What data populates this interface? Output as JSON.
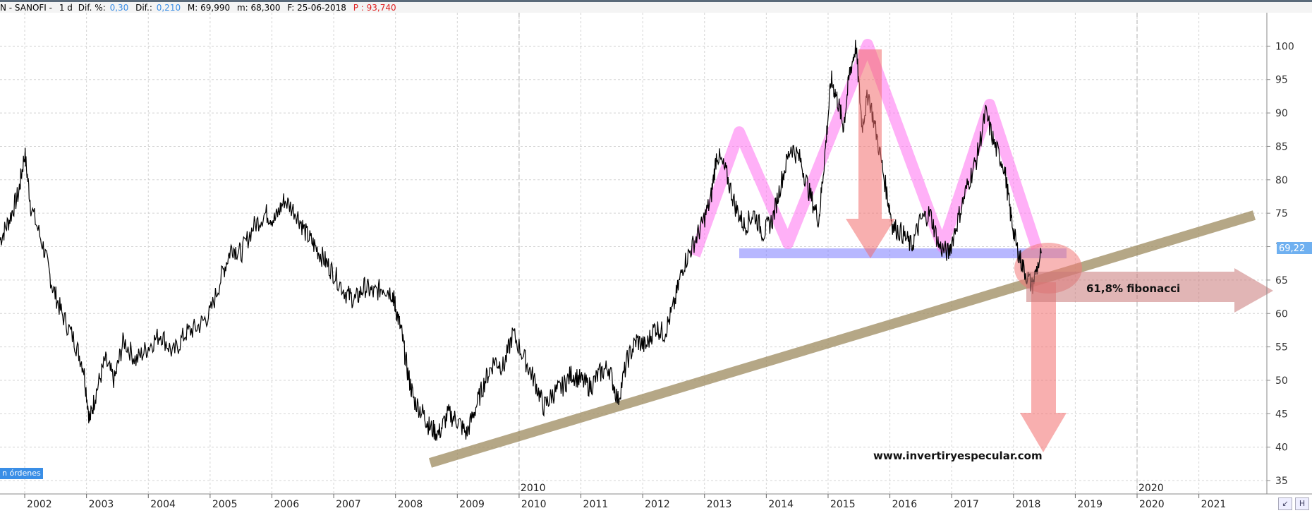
{
  "header": {
    "symbol": "N - SANOFI -",
    "timeframe": "1 d",
    "dif_pct_label": "Dif. %:",
    "dif_pct_value": "0,30",
    "dif_label": "Dif.:",
    "dif_value": "0,210",
    "max_label": "M: 69,990",
    "min_label": "m: 68,300",
    "date_label": "F: 25-06-2018",
    "p_label": "P : 93,740"
  },
  "orders_button": "n órdenes",
  "price_tag": "69,22",
  "chart_data": {
    "type": "line",
    "x_unit": "year",
    "x_ticks": [
      "2002",
      "2003",
      "2004",
      "2005",
      "2006",
      "2007",
      "2008",
      "2009",
      "2010",
      "2011",
      "2012",
      "2013",
      "2014",
      "2015",
      "2016",
      "2017",
      "2018",
      "2019",
      "2020",
      "2021"
    ],
    "x_upper_labels": [
      "2010",
      "2020"
    ],
    "y_ticks": [
      35,
      40,
      45,
      50,
      55,
      60,
      65,
      70,
      75,
      80,
      85,
      90,
      95,
      100
    ],
    "ylim": [
      33,
      105
    ],
    "xlim": [
      2001.6,
      2022.1
    ],
    "grid": true,
    "price_series": {
      "x": [
        2001.6,
        2001.75,
        2001.9,
        2002.0,
        2002.1,
        2002.3,
        2002.45,
        2002.6,
        2002.8,
        2002.95,
        2003.05,
        2003.15,
        2003.3,
        2003.45,
        2003.6,
        2003.8,
        2004.0,
        2004.2,
        2004.4,
        2004.6,
        2004.8,
        2005.0,
        2005.2,
        2005.35,
        2005.5,
        2005.7,
        2005.9,
        2006.05,
        2006.2,
        2006.4,
        2006.55,
        2006.7,
        2006.85,
        2007.0,
        2007.2,
        2007.35,
        2007.5,
        2007.65,
        2007.8,
        2007.95,
        2008.0,
        2008.1,
        2008.2,
        2008.3,
        2008.45,
        2008.55,
        2008.7,
        2008.85,
        2009.0,
        2009.15,
        2009.3,
        2009.45,
        2009.6,
        2009.75,
        2009.9,
        2010.1,
        2010.25,
        2010.4,
        2010.55,
        2010.7,
        2010.85,
        2011.0,
        2011.15,
        2011.3,
        2011.45,
        2011.6,
        2011.75,
        2011.9,
        2012.05,
        2012.2,
        2012.35,
        2012.5,
        2012.65,
        2012.8,
        2012.95,
        2013.1,
        2013.2,
        2013.35,
        2013.5,
        2013.65,
        2013.8,
        2013.95,
        2014.1,
        2014.25,
        2014.4,
        2014.55,
        2014.7,
        2014.85,
        2014.95,
        2015.05,
        2015.15,
        2015.25,
        2015.35,
        2015.45,
        2015.55,
        2015.65,
        2015.8,
        2015.95,
        2016.05,
        2016.2,
        2016.35,
        2016.5,
        2016.65,
        2016.8,
        2016.95,
        2017.1,
        2017.25,
        2017.4,
        2017.55,
        2017.7,
        2017.85,
        2017.95,
        2018.05,
        2018.15,
        2018.3,
        2018.45
      ],
      "y": [
        71,
        74,
        78,
        84,
        76,
        70,
        64,
        60,
        56,
        52,
        44,
        48,
        53,
        50,
        56,
        53,
        55,
        57,
        54,
        57,
        58,
        60,
        66,
        70,
        69,
        73,
        75,
        74,
        77,
        75,
        72,
        70,
        68,
        66,
        63,
        62,
        64,
        63,
        64,
        63,
        61,
        57,
        51,
        47,
        45,
        43,
        42,
        45,
        44,
        42,
        46,
        50,
        53,
        52,
        57,
        53,
        50,
        46,
        48,
        49,
        51,
        50,
        49,
        51,
        52,
        47,
        53,
        56,
        55,
        58,
        57,
        61,
        67,
        70,
        73,
        77,
        84,
        81,
        76,
        73,
        75,
        72,
        74,
        80,
        85,
        83,
        78,
        74,
        84,
        95,
        92,
        88,
        96,
        100,
        88,
        93,
        86,
        78,
        73,
        72,
        70,
        74,
        75,
        70,
        69,
        74,
        79,
        83,
        90,
        85,
        82,
        75,
        70,
        67,
        64,
        69
      ]
    },
    "annotations": {
      "label_fib": "61,8% fibonacci",
      "website": "www.invertiryespecular.com"
    }
  }
}
